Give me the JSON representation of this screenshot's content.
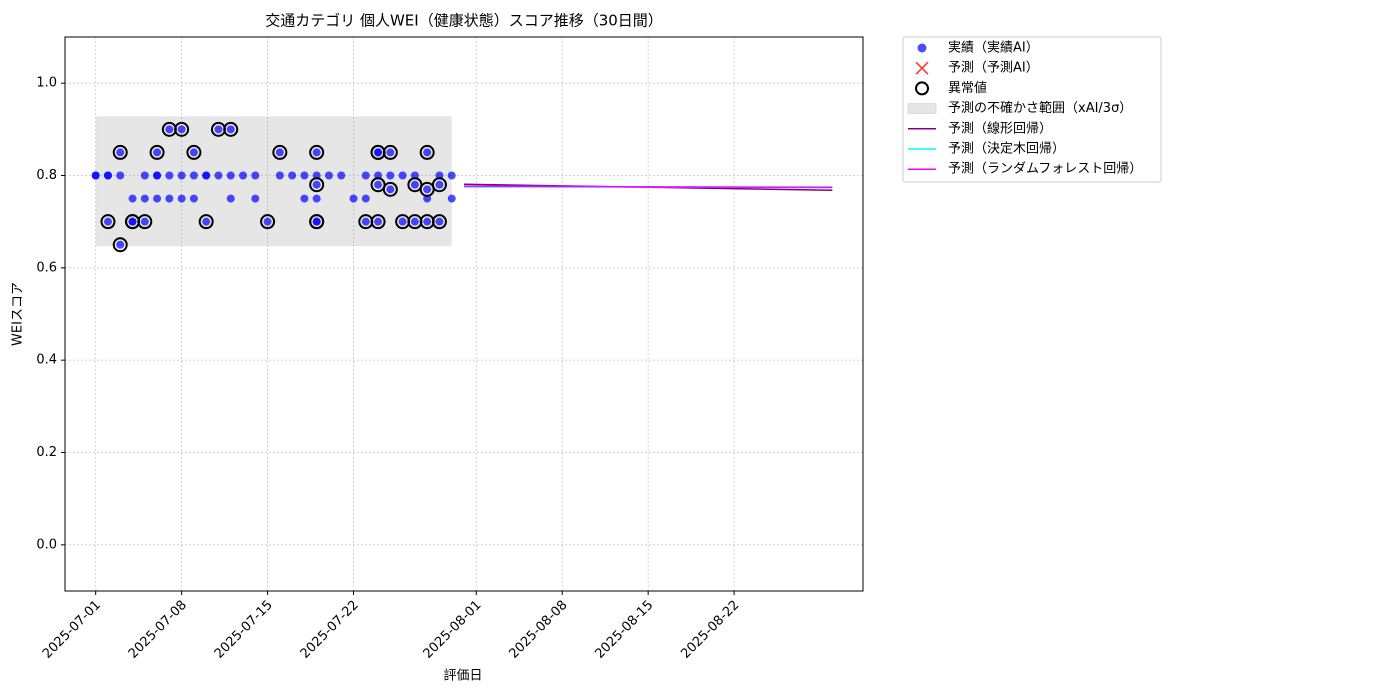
{
  "chart_data": {
    "type": "scatter",
    "title": "交通カテゴリ 個人WEI（健康状態）スコア推移（30日間）",
    "x_label": "評価日",
    "y_label": "WEIスコア",
    "xlim": [
      "2025-06-28T12:00:00",
      "2025-09-01T12:00:00"
    ],
    "xticks": [
      "2025-07-01",
      "2025-07-08",
      "2025-07-15",
      "2025-07-22",
      "2025-08-01",
      "2025-08-08",
      "2025-08-15",
      "2025-08-22"
    ],
    "ylim": [
      -0.1,
      1.1
    ],
    "yticks": [
      {
        "value": 0,
        "label": "0.0"
      },
      0.2,
      0.4,
      0.6,
      0.8,
      {
        "value": 1,
        "label": "1.0"
      }
    ],
    "grid": true,
    "legend": "outside right",
    "series": [
      {
        "name": "実績（実績AI）",
        "type": "scatter",
        "marker": "dot",
        "color": "#0000ff",
        "x": [
          "2025-07-01",
          "2025-07-01",
          "2025-07-02",
          "2025-07-02",
          "2025-07-02",
          "2025-07-03",
          "2025-07-03",
          "2025-07-03",
          "2025-07-04",
          "2025-07-04",
          "2025-07-04",
          "2025-07-05",
          "2025-07-05",
          "2025-07-05",
          "2025-07-06",
          "2025-07-06",
          "2025-07-06",
          "2025-07-06",
          "2025-07-07",
          "2025-07-07",
          "2025-07-07",
          "2025-07-08",
          "2025-07-08",
          "2025-07-08",
          "2025-07-09",
          "2025-07-09",
          "2025-07-09",
          "2025-07-10",
          "2025-07-10",
          "2025-07-10",
          "2025-07-11",
          "2025-07-11",
          "2025-07-12",
          "2025-07-12",
          "2025-07-12",
          "2025-07-13",
          "2025-07-14",
          "2025-07-14",
          "2025-07-15",
          "2025-07-16",
          "2025-07-16",
          "2025-07-17",
          "2025-07-18",
          "2025-07-18",
          "2025-07-19",
          "2025-07-19",
          "2025-07-19",
          "2025-07-19",
          "2025-07-19",
          "2025-07-19",
          "2025-07-20",
          "2025-07-21",
          "2025-07-22",
          "2025-07-23",
          "2025-07-23",
          "2025-07-23",
          "2025-07-24",
          "2025-07-24",
          "2025-07-24",
          "2025-07-24",
          "2025-07-24",
          "2025-07-25",
          "2025-07-25",
          "2025-07-25",
          "2025-07-26",
          "2025-07-26",
          "2025-07-27",
          "2025-07-27",
          "2025-07-27",
          "2025-07-28",
          "2025-07-28",
          "2025-07-28",
          "2025-07-28",
          "2025-07-29",
          "2025-07-29",
          "2025-07-29",
          "2025-07-30",
          "2025-07-30"
        ],
        "values": [
          0.8,
          0.8,
          0.8,
          0.7,
          0.8,
          0.8,
          0.65,
          0.85,
          0.75,
          0.7,
          0.7,
          0.7,
          0.75,
          0.8,
          0.85,
          0.8,
          0.75,
          0.8,
          0.9,
          0.75,
          0.8,
          0.75,
          0.9,
          0.8,
          0.85,
          0.8,
          0.75,
          0.8,
          0.8,
          0.7,
          0.9,
          0.8,
          0.75,
          0.8,
          0.9,
          0.8,
          0.8,
          0.75,
          0.7,
          0.85,
          0.8,
          0.8,
          0.8,
          0.75,
          0.7,
          0.75,
          0.85,
          0.7,
          0.8,
          0.78,
          0.8,
          0.8,
          0.75,
          0.8,
          0.75,
          0.7,
          0.78,
          0.7,
          0.85,
          0.8,
          0.85,
          0.77,
          0.8,
          0.85,
          0.7,
          0.8,
          0.8,
          0.78,
          0.7,
          0.85,
          0.75,
          0.77,
          0.7,
          0.8,
          0.7,
          0.78,
          0.8,
          0.75
        ]
      },
      {
        "name": "予測（予測AI）",
        "type": "scatter",
        "marker": "cross",
        "color": "#ff0000",
        "x": [],
        "values": []
      },
      {
        "name": "異常値",
        "type": "scatter",
        "marker": "ring",
        "color": "#000000",
        "x": [
          "2025-07-02",
          "2025-07-03",
          "2025-07-03",
          "2025-07-04",
          "2025-07-04",
          "2025-07-05",
          "2025-07-06",
          "2025-07-07",
          "2025-07-08",
          "2025-07-09",
          "2025-07-10",
          "2025-07-11",
          "2025-07-12",
          "2025-07-15",
          "2025-07-16",
          "2025-07-19",
          "2025-07-19",
          "2025-07-19",
          "2025-07-19",
          "2025-07-23",
          "2025-07-24",
          "2025-07-24",
          "2025-07-24",
          "2025-07-24",
          "2025-07-25",
          "2025-07-25",
          "2025-07-26",
          "2025-07-27",
          "2025-07-27",
          "2025-07-28",
          "2025-07-28",
          "2025-07-28",
          "2025-07-29",
          "2025-07-29"
        ],
        "values": [
          0.7,
          0.65,
          0.85,
          0.7,
          0.7,
          0.7,
          0.85,
          0.9,
          0.9,
          0.85,
          0.7,
          0.9,
          0.9,
          0.7,
          0.85,
          0.7,
          0.85,
          0.7,
          0.78,
          0.7,
          0.78,
          0.7,
          0.85,
          0.85,
          0.77,
          0.85,
          0.7,
          0.78,
          0.7,
          0.85,
          0.77,
          0.7,
          0.7,
          0.78
        ]
      },
      {
        "name": "予測の不確かさ範囲（xAI/3σ）",
        "type": "band",
        "color": "#808080",
        "x": [
          "2025-07-01",
          "2025-07-30"
        ],
        "values": [
          0.647,
          0.928
        ]
      },
      {
        "name": "予測（線形回帰）",
        "type": "line",
        "color": "#800080",
        "x": [
          "2025-07-31",
          "2025-08-30"
        ],
        "values": [
          0.781,
          0.768
        ]
      },
      {
        "name": "予測（決定木回帰）",
        "type": "line",
        "color": "#00ffff",
        "x": [
          "2025-07-31",
          "2025-08-30"
        ],
        "values": [
          0.775,
          0.775
        ]
      },
      {
        "name": "予測（ランダムフォレスト回帰）",
        "type": "line",
        "color": "#ff00ff",
        "x": [
          "2025-07-31",
          "2025-08-30"
        ],
        "values": [
          0.777,
          0.774
        ]
      }
    ]
  }
}
